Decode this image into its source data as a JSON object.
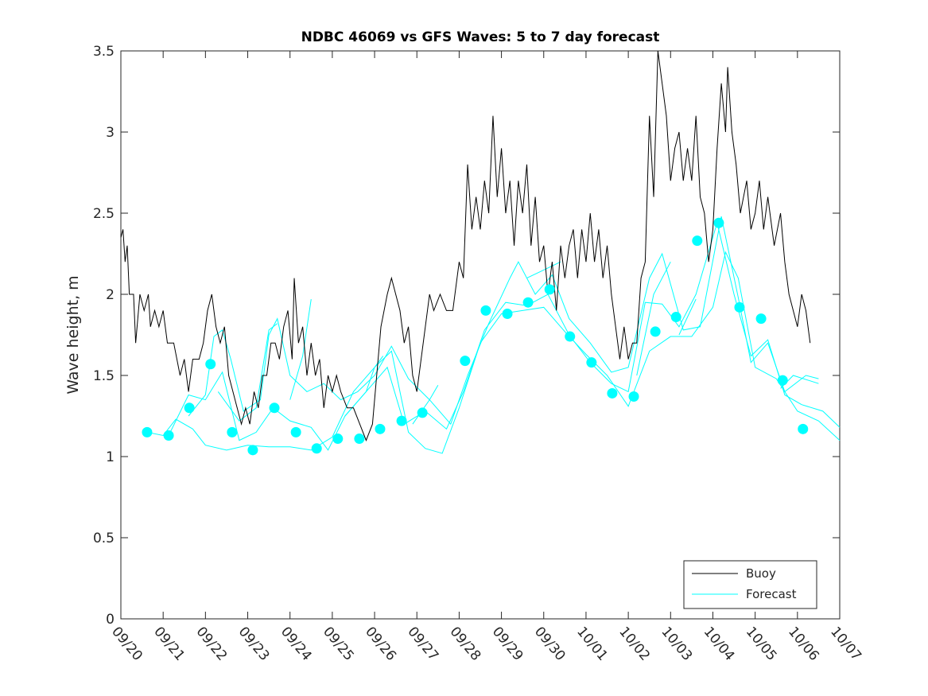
{
  "chart_data": {
    "type": "line",
    "title": "NDBC 46069 vs GFS Waves: 5 to 7 day forecast",
    "xlabel": "",
    "ylabel": "Wave height, m",
    "ylim": [
      0,
      3.5
    ],
    "xlim_days": [
      0,
      17
    ],
    "yticks": [
      "0",
      "0.5",
      "1",
      "1.5",
      "2",
      "2.5",
      "3",
      "3.5"
    ],
    "xtick_labels": [
      "09/20",
      "09/21",
      "09/22",
      "09/23",
      "09/24",
      "09/25",
      "09/26",
      "09/27",
      "09/28",
      "09/29",
      "09/30",
      "10/01",
      "10/02",
      "10/03",
      "10/04",
      "10/05",
      "10/06",
      "10/07"
    ],
    "grid": false,
    "legend": {
      "placement": "bottom-right",
      "entries": [
        "Buoy",
        "Forecast"
      ]
    },
    "colors": {
      "buoy": "#000000",
      "forecast": "#00ffff"
    },
    "buoy": [
      [
        0,
        2.35
      ],
      [
        0.05,
        2.4
      ],
      [
        0.1,
        2.2
      ],
      [
        0.15,
        2.3
      ],
      [
        0.2,
        2.0
      ],
      [
        0.3,
        2.0
      ],
      [
        0.35,
        1.7
      ],
      [
        0.45,
        2.0
      ],
      [
        0.55,
        1.9
      ],
      [
        0.65,
        2.0
      ],
      [
        0.7,
        1.8
      ],
      [
        0.8,
        1.9
      ],
      [
        0.9,
        1.8
      ],
      [
        1.0,
        1.9
      ],
      [
        1.1,
        1.7
      ],
      [
        1.25,
        1.7
      ],
      [
        1.4,
        1.5
      ],
      [
        1.5,
        1.6
      ],
      [
        1.6,
        1.4
      ],
      [
        1.7,
        1.6
      ],
      [
        1.85,
        1.6
      ],
      [
        1.95,
        1.7
      ],
      [
        2.05,
        1.9
      ],
      [
        2.15,
        2.0
      ],
      [
        2.25,
        1.8
      ],
      [
        2.35,
        1.7
      ],
      [
        2.45,
        1.8
      ],
      [
        2.55,
        1.5
      ],
      [
        2.65,
        1.4
      ],
      [
        2.75,
        1.3
      ],
      [
        2.85,
        1.2
      ],
      [
        2.95,
        1.3
      ],
      [
        3.05,
        1.2
      ],
      [
        3.15,
        1.4
      ],
      [
        3.25,
        1.3
      ],
      [
        3.35,
        1.5
      ],
      [
        3.45,
        1.5
      ],
      [
        3.55,
        1.7
      ],
      [
        3.65,
        1.7
      ],
      [
        3.75,
        1.6
      ],
      [
        3.85,
        1.8
      ],
      [
        3.95,
        1.9
      ],
      [
        4.05,
        1.6
      ],
      [
        4.1,
        2.1
      ],
      [
        4.2,
        1.7
      ],
      [
        4.3,
        1.8
      ],
      [
        4.4,
        1.5
      ],
      [
        4.5,
        1.7
      ],
      [
        4.6,
        1.5
      ],
      [
        4.7,
        1.6
      ],
      [
        4.8,
        1.3
      ],
      [
        4.9,
        1.5
      ],
      [
        5.0,
        1.4
      ],
      [
        5.1,
        1.5
      ],
      [
        5.2,
        1.4
      ],
      [
        5.35,
        1.3
      ],
      [
        5.5,
        1.3
      ],
      [
        5.65,
        1.2
      ],
      [
        5.8,
        1.1
      ],
      [
        5.95,
        1.2
      ],
      [
        6.05,
        1.5
      ],
      [
        6.15,
        1.8
      ],
      [
        6.3,
        2.0
      ],
      [
        6.4,
        2.1
      ],
      [
        6.5,
        2.0
      ],
      [
        6.6,
        1.9
      ],
      [
        6.7,
        1.7
      ],
      [
        6.8,
        1.8
      ],
      [
        6.9,
        1.5
      ],
      [
        7.0,
        1.4
      ],
      [
        7.1,
        1.6
      ],
      [
        7.2,
        1.8
      ],
      [
        7.3,
        2.0
      ],
      [
        7.4,
        1.9
      ],
      [
        7.55,
        2.0
      ],
      [
        7.7,
        1.9
      ],
      [
        7.85,
        1.9
      ],
      [
        8.0,
        2.2
      ],
      [
        8.1,
        2.1
      ],
      [
        8.2,
        2.8
      ],
      [
        8.3,
        2.4
      ],
      [
        8.4,
        2.6
      ],
      [
        8.5,
        2.4
      ],
      [
        8.6,
        2.7
      ],
      [
        8.7,
        2.5
      ],
      [
        8.8,
        3.1
      ],
      [
        8.9,
        2.6
      ],
      [
        9.0,
        2.9
      ],
      [
        9.1,
        2.5
      ],
      [
        9.2,
        2.7
      ],
      [
        9.3,
        2.3
      ],
      [
        9.4,
        2.7
      ],
      [
        9.5,
        2.5
      ],
      [
        9.6,
        2.8
      ],
      [
        9.7,
        2.3
      ],
      [
        9.8,
        2.6
      ],
      [
        9.9,
        2.2
      ],
      [
        10.0,
        2.3
      ],
      [
        10.1,
        2.0
      ],
      [
        10.2,
        2.2
      ],
      [
        10.3,
        1.9
      ],
      [
        10.4,
        2.3
      ],
      [
        10.5,
        2.1
      ],
      [
        10.6,
        2.3
      ],
      [
        10.7,
        2.4
      ],
      [
        10.8,
        2.1
      ],
      [
        10.9,
        2.4
      ],
      [
        11.0,
        2.2
      ],
      [
        11.1,
        2.5
      ],
      [
        11.2,
        2.2
      ],
      [
        11.3,
        2.4
      ],
      [
        11.4,
        2.1
      ],
      [
        11.5,
        2.3
      ],
      [
        11.6,
        2.0
      ],
      [
        11.7,
        1.8
      ],
      [
        11.8,
        1.6
      ],
      [
        11.9,
        1.8
      ],
      [
        12.0,
        1.6
      ],
      [
        12.1,
        1.7
      ],
      [
        12.2,
        1.7
      ],
      [
        12.3,
        2.1
      ],
      [
        12.4,
        2.2
      ],
      [
        12.5,
        3.1
      ],
      [
        12.6,
        2.6
      ],
      [
        12.7,
        3.5
      ],
      [
        12.8,
        3.3
      ],
      [
        12.9,
        3.1
      ],
      [
        13.0,
        2.7
      ],
      [
        13.1,
        2.9
      ],
      [
        13.2,
        3.0
      ],
      [
        13.3,
        2.7
      ],
      [
        13.4,
        2.9
      ],
      [
        13.5,
        2.7
      ],
      [
        13.6,
        3.1
      ],
      [
        13.7,
        2.6
      ],
      [
        13.8,
        2.5
      ],
      [
        13.9,
        2.2
      ],
      [
        14.0,
        2.4
      ],
      [
        14.1,
        2.9
      ],
      [
        14.2,
        3.3
      ],
      [
        14.3,
        3.0
      ],
      [
        14.35,
        3.4
      ],
      [
        14.45,
        3.0
      ],
      [
        14.55,
        2.8
      ],
      [
        14.65,
        2.5
      ],
      [
        14.8,
        2.7
      ],
      [
        14.9,
        2.4
      ],
      [
        15.0,
        2.5
      ],
      [
        15.1,
        2.7
      ],
      [
        15.2,
        2.4
      ],
      [
        15.3,
        2.6
      ],
      [
        15.45,
        2.3
      ],
      [
        15.6,
        2.5
      ],
      [
        15.7,
        2.2
      ],
      [
        15.8,
        2.0
      ],
      [
        15.9,
        1.9
      ],
      [
        16.0,
        1.8
      ],
      [
        16.1,
        2.0
      ],
      [
        16.2,
        1.9
      ],
      [
        16.3,
        1.7
      ]
    ],
    "forecast_points": [
      [
        0.62,
        1.15
      ],
      [
        1.13,
        1.13
      ],
      [
        1.62,
        1.3
      ],
      [
        2.12,
        1.57
      ],
      [
        2.63,
        1.15
      ],
      [
        3.12,
        1.04
      ],
      [
        3.63,
        1.3
      ],
      [
        4.14,
        1.15
      ],
      [
        4.63,
        1.05
      ],
      [
        5.13,
        1.11
      ],
      [
        5.64,
        1.11
      ],
      [
        6.13,
        1.17
      ],
      [
        6.64,
        1.22
      ],
      [
        7.13,
        1.27
      ],
      [
        8.14,
        1.59
      ],
      [
        8.63,
        1.9
      ],
      [
        9.14,
        1.88
      ],
      [
        9.63,
        1.95
      ],
      [
        10.14,
        2.03
      ],
      [
        10.62,
        1.74
      ],
      [
        11.13,
        1.58
      ],
      [
        11.62,
        1.39
      ],
      [
        12.13,
        1.37
      ],
      [
        12.64,
        1.77
      ],
      [
        13.13,
        1.86
      ],
      [
        13.63,
        2.33
      ],
      [
        14.14,
        2.44
      ],
      [
        14.63,
        1.92
      ],
      [
        15.14,
        1.85
      ],
      [
        15.65,
        1.47
      ],
      [
        16.13,
        1.17
      ]
    ],
    "forecast_lines": [
      [
        [
          0.62,
          1.15
        ],
        [
          1.0,
          1.13
        ],
        [
          1.3,
          1.23
        ],
        [
          1.7,
          1.17
        ],
        [
          2.0,
          1.07
        ],
        [
          2.5,
          1.04
        ],
        [
          3.0,
          1.07
        ],
        [
          3.5,
          1.06
        ],
        [
          4.0,
          1.06
        ],
        [
          4.5,
          1.04
        ],
        [
          5.0,
          1.12
        ],
        [
          5.5,
          1.4
        ],
        [
          6.0,
          1.55
        ],
        [
          6.4,
          1.65
        ],
        [
          6.8,
          1.15
        ],
        [
          7.2,
          1.05
        ],
        [
          7.6,
          1.02
        ],
        [
          8.0,
          1.3
        ],
        [
          8.5,
          1.7
        ],
        [
          9.0,
          1.88
        ],
        [
          9.5,
          1.9
        ],
        [
          10.0,
          1.92
        ],
        [
          10.5,
          1.77
        ],
        [
          11.0,
          1.63
        ],
        [
          11.5,
          1.5
        ],
        [
          12.0,
          1.31
        ],
        [
          12.5,
          1.65
        ],
        [
          13.0,
          1.74
        ],
        [
          13.5,
          1.74
        ],
        [
          14.0,
          1.92
        ],
        [
          14.3,
          2.26
        ],
        [
          14.6,
          2.1
        ],
        [
          15.0,
          1.55
        ],
        [
          15.5,
          1.48
        ],
        [
          16.0,
          1.28
        ],
        [
          16.5,
          1.22
        ],
        [
          17.0,
          1.1
        ]
      ],
      [
        [
          1.13,
          1.13
        ],
        [
          1.6,
          1.38
        ],
        [
          2.0,
          1.35
        ],
        [
          2.4,
          1.52
        ],
        [
          2.8,
          1.1
        ],
        [
          3.2,
          1.15
        ],
        [
          3.6,
          1.3
        ],
        [
          4.0,
          1.22
        ],
        [
          4.5,
          1.18
        ],
        [
          4.9,
          1.04
        ],
        [
          5.3,
          1.25
        ],
        [
          5.8,
          1.4
        ],
        [
          6.3,
          1.55
        ],
        [
          6.7,
          1.2
        ],
        [
          7.2,
          1.28
        ],
        [
          7.7,
          1.17
        ],
        [
          8.1,
          1.4
        ],
        [
          8.6,
          1.78
        ],
        [
          9.1,
          1.95
        ],
        [
          9.6,
          1.93
        ],
        [
          10.1,
          2.0
        ],
        [
          10.6,
          1.75
        ],
        [
          11.1,
          1.58
        ],
        [
          11.6,
          1.45
        ],
        [
          12.0,
          1.4
        ],
        [
          12.4,
          1.95
        ],
        [
          12.8,
          1.94
        ],
        [
          13.2,
          1.8
        ],
        [
          13.6,
          2.0
        ],
        [
          14.1,
          2.44
        ],
        [
          14.5,
          2.0
        ],
        [
          14.9,
          1.62
        ],
        [
          15.3,
          1.72
        ],
        [
          15.7,
          1.38
        ],
        [
          16.1,
          1.32
        ],
        [
          16.6,
          1.28
        ],
        [
          17.0,
          1.18
        ]
      ],
      [
        [
          1.6,
          1.25
        ],
        [
          2.0,
          1.38
        ],
        [
          2.2,
          1.74
        ],
        [
          2.4,
          1.78
        ],
        [
          2.6,
          1.6
        ],
        [
          2.9,
          1.28
        ],
        [
          3.3,
          1.35
        ],
        [
          3.5,
          1.75
        ],
        [
          3.7,
          1.85
        ],
        [
          4.0,
          1.5
        ],
        [
          4.4,
          1.4
        ],
        [
          4.8,
          1.45
        ],
        [
          5.2,
          1.35
        ],
        [
          5.6,
          1.4
        ],
        [
          6.0,
          1.5
        ],
        [
          6.4,
          1.68
        ],
        [
          6.8,
          1.48
        ],
        [
          7.3,
          1.35
        ],
        [
          7.8,
          1.2
        ],
        [
          8.2,
          1.5
        ],
        [
          8.7,
          1.82
        ],
        [
          9.2,
          2.1
        ],
        [
          9.4,
          2.2
        ],
        [
          9.8,
          2.0
        ],
        [
          10.2,
          2.12
        ],
        [
          10.6,
          1.85
        ],
        [
          11.1,
          1.7
        ],
        [
          11.6,
          1.52
        ],
        [
          12.0,
          1.55
        ],
        [
          12.5,
          2.1
        ],
        [
          12.8,
          2.25
        ],
        [
          13.3,
          1.78
        ],
        [
          13.7,
          1.8
        ],
        [
          14.2,
          2.48
        ],
        [
          14.6,
          1.98
        ],
        [
          14.9,
          1.58
        ],
        [
          15.3,
          1.7
        ],
        [
          15.7,
          1.4
        ],
        [
          16.2,
          1.5
        ],
        [
          16.5,
          1.48
        ]
      ],
      [
        [
          2.3,
          1.4
        ],
        [
          2.8,
          1.22
        ],
        [
          3.2,
          1.3
        ],
        [
          3.5,
          1.78
        ],
        [
          3.7,
          1.82
        ]
      ],
      [
        [
          4.0,
          1.35
        ],
        [
          4.3,
          1.62
        ],
        [
          4.5,
          1.97
        ]
      ],
      [
        [
          5.3,
          1.25
        ],
        [
          5.8,
          1.4
        ],
        [
          6.0,
          1.55
        ],
        [
          6.2,
          1.62
        ]
      ],
      [
        [
          6.9,
          1.2
        ],
        [
          7.3,
          1.35
        ],
        [
          7.5,
          1.44
        ]
      ],
      [
        [
          9.6,
          2.1
        ],
        [
          10.0,
          2.15
        ],
        [
          10.4,
          2.2
        ]
      ],
      [
        [
          12.2,
          1.5
        ],
        [
          12.6,
          2.0
        ],
        [
          13.0,
          2.2
        ]
      ],
      [
        [
          13.2,
          1.75
        ],
        [
          13.6,
          1.97
        ]
      ],
      [
        [
          15.6,
          1.42
        ],
        [
          15.9,
          1.5
        ],
        [
          16.5,
          1.45
        ]
      ]
    ]
  }
}
